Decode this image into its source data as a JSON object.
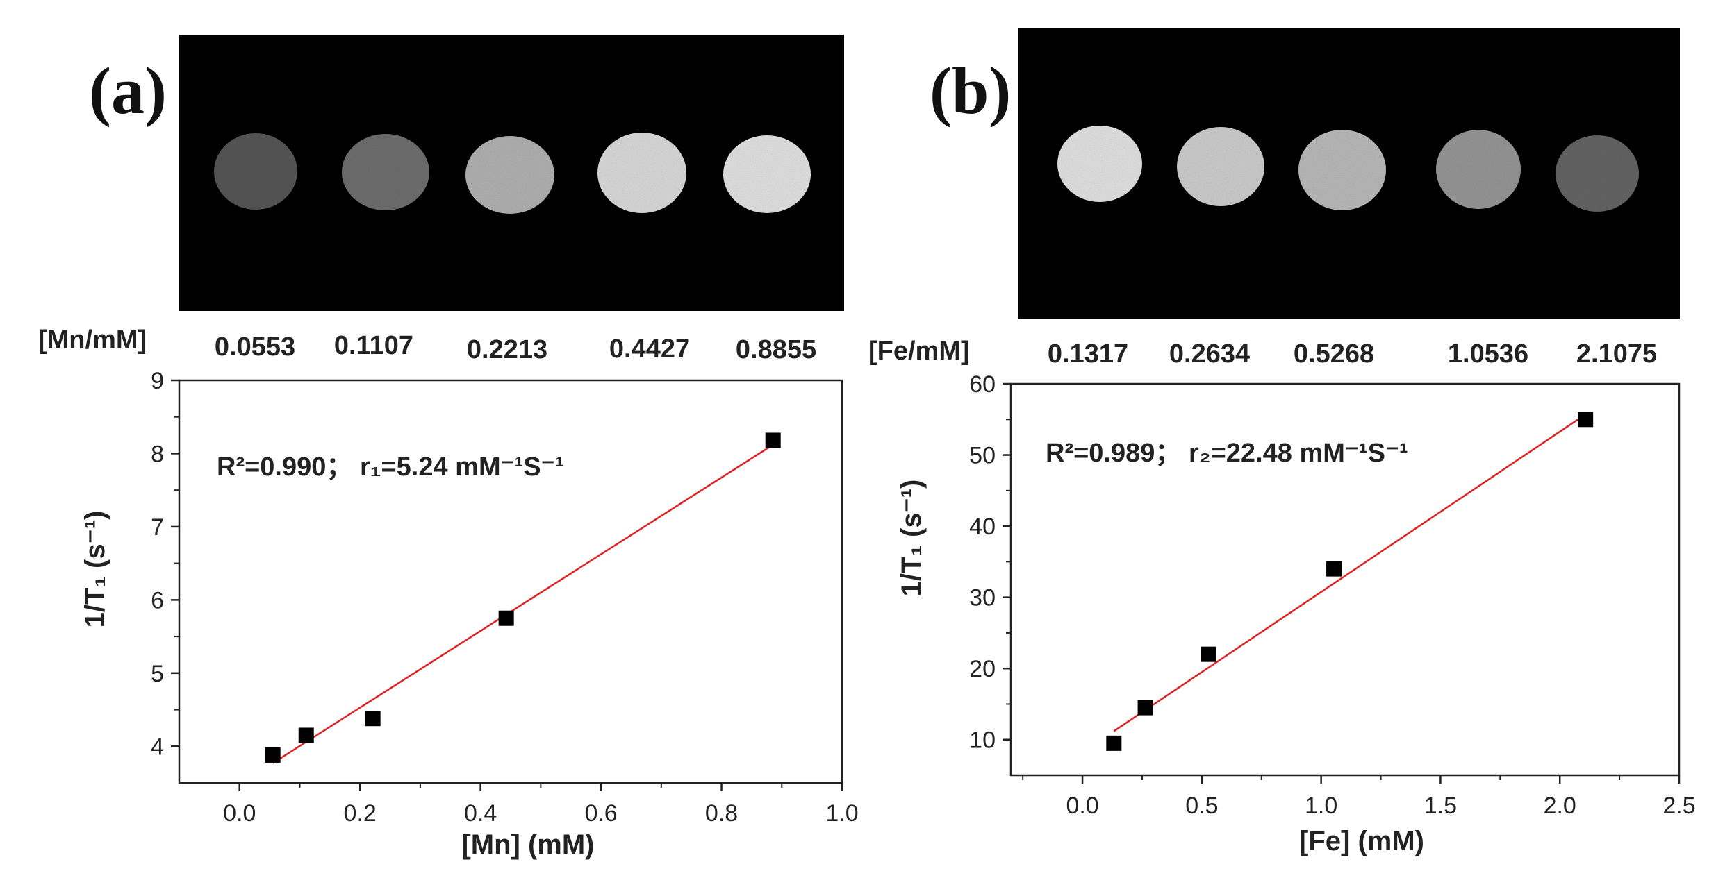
{
  "panels": [
    {
      "label": "(a)",
      "concentration_header": "[Mn/mM]",
      "concentrations": [
        "0.0553",
        "0.1107",
        "0.2213",
        "0.4427",
        "0.8855"
      ],
      "phantom_brightness": [
        0.34,
        0.44,
        0.71,
        0.87,
        0.9
      ]
    },
    {
      "label": "(b)",
      "concentration_header": "[Fe/mM]",
      "concentrations": [
        "0.1317",
        "0.2634",
        "0.5268",
        "1.0536",
        "2.1075"
      ],
      "phantom_brightness": [
        0.9,
        0.82,
        0.74,
        0.6,
        0.4
      ]
    }
  ],
  "chart_data": [
    {
      "type": "scatter",
      "xlabel": "[Mn] (mM)",
      "ylabel": "1/T₁ (s⁻¹)",
      "xlim": [
        -0.1,
        1.0
      ],
      "ylim": [
        3.5,
        9
      ],
      "xticks": [
        0.0,
        0.2,
        0.4,
        0.6,
        0.8,
        1.0
      ],
      "xtick_labels": [
        "0.0",
        "0.2",
        "0.4",
        "0.6",
        "0.8",
        "1.0"
      ],
      "yticks": [
        4,
        5,
        6,
        7,
        8,
        9
      ],
      "ytick_labels": [
        "4",
        "5",
        "6",
        "7",
        "8",
        "9"
      ],
      "annotation": "R²=0.990； r₁=5.24 mM⁻¹S⁻¹",
      "series": [
        {
          "x": [
            0.0553,
            0.1107,
            0.2213,
            0.4427,
            0.8855
          ],
          "y": [
            3.88,
            4.15,
            4.38,
            5.75,
            8.18
          ]
        }
      ],
      "fit_line": {
        "x": [
          0.0553,
          0.8855
        ],
        "y": [
          3.77,
          8.12
        ],
        "color": "#e02020"
      },
      "marker_color": "#000000",
      "grid": false
    },
    {
      "type": "scatter",
      "xlabel": "[Fe] (mM)",
      "ylabel": "1/T₁ (s⁻¹)",
      "xlim": [
        -0.3,
        2.5
      ],
      "ylim": [
        5,
        60
      ],
      "xticks": [
        0.0,
        0.5,
        1.0,
        1.5,
        2.0,
        2.5
      ],
      "xtick_labels": [
        "0.0",
        "0.5",
        "1.0",
        "1.5",
        "2.0",
        "2.5"
      ],
      "yticks": [
        10,
        20,
        30,
        40,
        50,
        60
      ],
      "ytick_labels": [
        "10",
        "20",
        "30",
        "40",
        "50",
        "60"
      ],
      "annotation": "R²=0.989； r₂=22.48 mM⁻¹S⁻¹",
      "series": [
        {
          "x": [
            0.1317,
            0.2634,
            0.5268,
            1.0536,
            2.1075
          ],
          "y": [
            9.5,
            14.5,
            22.0,
            34.0,
            55.0
          ]
        }
      ],
      "fit_line": {
        "x": [
          0.1317,
          2.1075
        ],
        "y": [
          11.2,
          55.7
        ],
        "color": "#e02020"
      },
      "marker_color": "#000000",
      "grid": false
    }
  ]
}
